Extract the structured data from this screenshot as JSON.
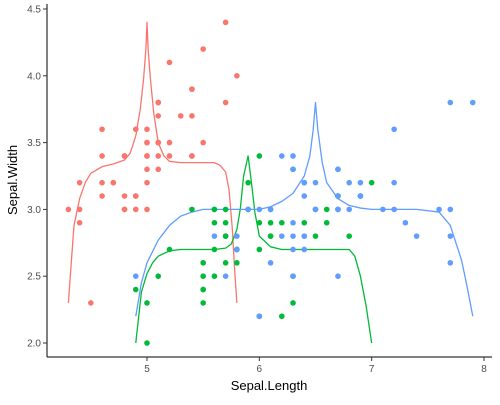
{
  "chart_data": {
    "type": "scatter",
    "title": "",
    "xlabel": "Sepal.Length",
    "ylabel": "Sepal.Width",
    "xlim": [
      4.2,
      8.0
    ],
    "ylim": [
      1.95,
      4.5
    ],
    "x_ticks": [
      5,
      6,
      7,
      8
    ],
    "y_ticks": [
      2.0,
      2.5,
      3.0,
      3.5,
      4.0,
      4.5
    ],
    "x_tick_labels": [
      "5",
      "6",
      "7",
      "8"
    ],
    "y_tick_labels": [
      "2.0",
      "2.5",
      "3.0",
      "3.5",
      "4.0",
      "4.5"
    ],
    "grid": false,
    "legend": "none",
    "series": [
      {
        "color": "#F8766D",
        "points": [
          [
            5.1,
            3.5
          ],
          [
            4.9,
            3.0
          ],
          [
            4.7,
            3.2
          ],
          [
            4.6,
            3.1
          ],
          [
            5.0,
            3.6
          ],
          [
            5.4,
            3.9
          ],
          [
            4.6,
            3.4
          ],
          [
            5.0,
            3.4
          ],
          [
            4.4,
            2.9
          ],
          [
            4.9,
            3.1
          ],
          [
            5.4,
            3.7
          ],
          [
            4.8,
            3.4
          ],
          [
            4.8,
            3.0
          ],
          [
            4.3,
            3.0
          ],
          [
            5.8,
            4.0
          ],
          [
            5.7,
            4.4
          ],
          [
            5.4,
            3.9
          ],
          [
            5.1,
            3.5
          ],
          [
            5.7,
            3.8
          ],
          [
            5.1,
            3.8
          ],
          [
            5.4,
            3.4
          ],
          [
            5.1,
            3.7
          ],
          [
            4.6,
            3.6
          ],
          [
            5.1,
            3.3
          ],
          [
            4.8,
            3.4
          ],
          [
            5.0,
            3.0
          ],
          [
            5.0,
            3.4
          ],
          [
            5.2,
            3.5
          ],
          [
            5.2,
            3.4
          ],
          [
            4.7,
            3.2
          ],
          [
            4.8,
            3.1
          ],
          [
            5.4,
            3.4
          ],
          [
            5.2,
            4.1
          ],
          [
            5.5,
            4.2
          ],
          [
            4.9,
            3.1
          ],
          [
            5.0,
            3.2
          ],
          [
            5.5,
            3.5
          ],
          [
            4.9,
            3.6
          ],
          [
            4.4,
            3.0
          ],
          [
            5.1,
            3.4
          ],
          [
            5.0,
            3.5
          ],
          [
            4.5,
            2.3
          ],
          [
            4.4,
            3.2
          ],
          [
            5.0,
            3.5
          ],
          [
            5.1,
            3.8
          ],
          [
            4.8,
            3.0
          ],
          [
            5.1,
            3.8
          ],
          [
            4.6,
            3.2
          ],
          [
            5.3,
            3.7
          ],
          [
            5.0,
            3.3
          ]
        ],
        "curve": {
          "x": [
            4.3,
            4.35,
            4.4,
            4.45,
            4.5,
            4.6,
            4.7,
            4.8,
            4.85,
            4.9,
            4.94,
            4.97,
            4.99,
            5.0,
            5.01,
            5.03,
            5.06,
            5.1,
            5.15,
            5.2,
            5.3,
            5.4,
            5.5,
            5.6,
            5.65,
            5.7,
            5.73,
            5.76,
            5.78,
            5.8
          ],
          "y": [
            2.3,
            2.88,
            3.08,
            3.2,
            3.27,
            3.32,
            3.34,
            3.37,
            3.42,
            3.55,
            3.75,
            3.98,
            4.2,
            4.4,
            4.2,
            3.98,
            3.72,
            3.5,
            3.4,
            3.36,
            3.35,
            3.35,
            3.35,
            3.35,
            3.33,
            3.28,
            3.15,
            2.85,
            2.55,
            2.3
          ]
        }
      },
      {
        "color": "#00BA38",
        "points": [
          [
            7.0,
            3.2
          ],
          [
            6.4,
            3.2
          ],
          [
            6.9,
            3.1
          ],
          [
            5.5,
            2.3
          ],
          [
            6.5,
            2.8
          ],
          [
            5.7,
            2.8
          ],
          [
            6.3,
            3.3
          ],
          [
            4.9,
            2.4
          ],
          [
            6.6,
            2.9
          ],
          [
            5.2,
            2.7
          ],
          [
            5.0,
            2.0
          ],
          [
            5.9,
            3.0
          ],
          [
            6.0,
            2.2
          ],
          [
            6.1,
            2.9
          ],
          [
            5.6,
            2.9
          ],
          [
            6.7,
            3.1
          ],
          [
            5.6,
            3.0
          ],
          [
            5.8,
            2.7
          ],
          [
            6.2,
            2.2
          ],
          [
            5.6,
            2.5
          ],
          [
            5.9,
            3.2
          ],
          [
            6.1,
            2.8
          ],
          [
            6.3,
            2.5
          ],
          [
            6.1,
            2.8
          ],
          [
            6.4,
            2.9
          ],
          [
            6.6,
            3.0
          ],
          [
            6.8,
            2.8
          ],
          [
            6.7,
            3.0
          ],
          [
            6.0,
            2.9
          ],
          [
            5.7,
            2.6
          ],
          [
            5.5,
            2.4
          ],
          [
            5.5,
            2.4
          ],
          [
            5.8,
            2.7
          ],
          [
            6.0,
            2.7
          ],
          [
            5.4,
            3.0
          ],
          [
            6.0,
            3.4
          ],
          [
            6.7,
            3.1
          ],
          [
            6.3,
            2.3
          ],
          [
            5.6,
            3.0
          ],
          [
            5.5,
            2.5
          ],
          [
            5.5,
            2.6
          ],
          [
            6.1,
            3.0
          ],
          [
            5.8,
            2.6
          ],
          [
            5.0,
            2.3
          ],
          [
            5.6,
            2.7
          ],
          [
            5.7,
            3.0
          ],
          [
            5.7,
            2.9
          ],
          [
            6.2,
            2.9
          ],
          [
            5.1,
            2.5
          ],
          [
            5.7,
            2.8
          ]
        ],
        "curve": {
          "x": [
            4.9,
            4.95,
            5.0,
            5.05,
            5.1,
            5.2,
            5.3,
            5.4,
            5.5,
            5.6,
            5.7,
            5.75,
            5.8,
            5.83,
            5.86,
            5.9,
            5.93,
            5.96,
            6.0,
            6.1,
            6.2,
            6.4,
            6.6,
            6.8,
            6.85,
            6.9,
            6.95,
            7.0
          ],
          "y": [
            2.0,
            2.38,
            2.52,
            2.6,
            2.65,
            2.69,
            2.7,
            2.7,
            2.7,
            2.7,
            2.71,
            2.74,
            2.85,
            3.0,
            3.25,
            3.4,
            3.2,
            2.98,
            2.8,
            2.72,
            2.7,
            2.7,
            2.7,
            2.7,
            2.65,
            2.5,
            2.28,
            2.0
          ]
        }
      },
      {
        "color": "#619CFF",
        "points": [
          [
            6.3,
            3.3
          ],
          [
            5.8,
            2.7
          ],
          [
            7.1,
            3.0
          ],
          [
            6.3,
            2.9
          ],
          [
            6.5,
            3.0
          ],
          [
            7.6,
            3.0
          ],
          [
            4.9,
            2.5
          ],
          [
            7.3,
            2.9
          ],
          [
            6.7,
            2.5
          ],
          [
            7.2,
            3.6
          ],
          [
            6.5,
            3.2
          ],
          [
            6.4,
            2.7
          ],
          [
            6.8,
            3.0
          ],
          [
            5.7,
            2.5
          ],
          [
            5.8,
            2.8
          ],
          [
            6.4,
            3.2
          ],
          [
            6.5,
            3.0
          ],
          [
            7.7,
            3.8
          ],
          [
            7.7,
            2.6
          ],
          [
            6.0,
            2.2
          ],
          [
            6.9,
            3.2
          ],
          [
            5.6,
            2.8
          ],
          [
            7.7,
            2.8
          ],
          [
            6.3,
            2.7
          ],
          [
            6.7,
            3.3
          ],
          [
            7.2,
            3.2
          ],
          [
            6.2,
            2.8
          ],
          [
            6.1,
            3.0
          ],
          [
            6.4,
            2.8
          ],
          [
            7.2,
            3.0
          ],
          [
            7.4,
            2.8
          ],
          [
            7.9,
            3.8
          ],
          [
            6.4,
            2.8
          ],
          [
            6.3,
            2.8
          ],
          [
            6.1,
            2.6
          ],
          [
            7.7,
            3.0
          ],
          [
            6.3,
            3.4
          ],
          [
            6.4,
            3.1
          ],
          [
            6.0,
            3.0
          ],
          [
            6.9,
            3.1
          ],
          [
            6.7,
            3.1
          ],
          [
            6.9,
            3.1
          ],
          [
            5.8,
            2.7
          ],
          [
            6.8,
            3.2
          ],
          [
            6.7,
            3.3
          ],
          [
            6.7,
            3.0
          ],
          [
            6.3,
            2.5
          ],
          [
            6.5,
            3.0
          ],
          [
            6.2,
            3.4
          ],
          [
            5.9,
            3.0
          ]
        ],
        "curve": {
          "x": [
            4.9,
            4.95,
            5.0,
            5.1,
            5.2,
            5.3,
            5.4,
            5.5,
            5.7,
            5.9,
            6.0,
            6.1,
            6.2,
            6.3,
            6.4,
            6.45,
            6.48,
            6.5,
            6.52,
            6.56,
            6.6,
            6.7,
            6.8,
            6.9,
            7.0,
            7.2,
            7.4,
            7.6,
            7.7,
            7.8,
            7.85,
            7.9
          ],
          "y": [
            2.2,
            2.45,
            2.6,
            2.77,
            2.88,
            2.95,
            2.98,
            3.0,
            3.0,
            3.0,
            3.0,
            3.02,
            3.06,
            3.12,
            3.25,
            3.4,
            3.6,
            3.8,
            3.6,
            3.35,
            3.2,
            3.08,
            3.03,
            3.01,
            3.0,
            3.0,
            3.0,
            2.98,
            2.88,
            2.62,
            2.42,
            2.2
          ]
        }
      }
    ]
  }
}
